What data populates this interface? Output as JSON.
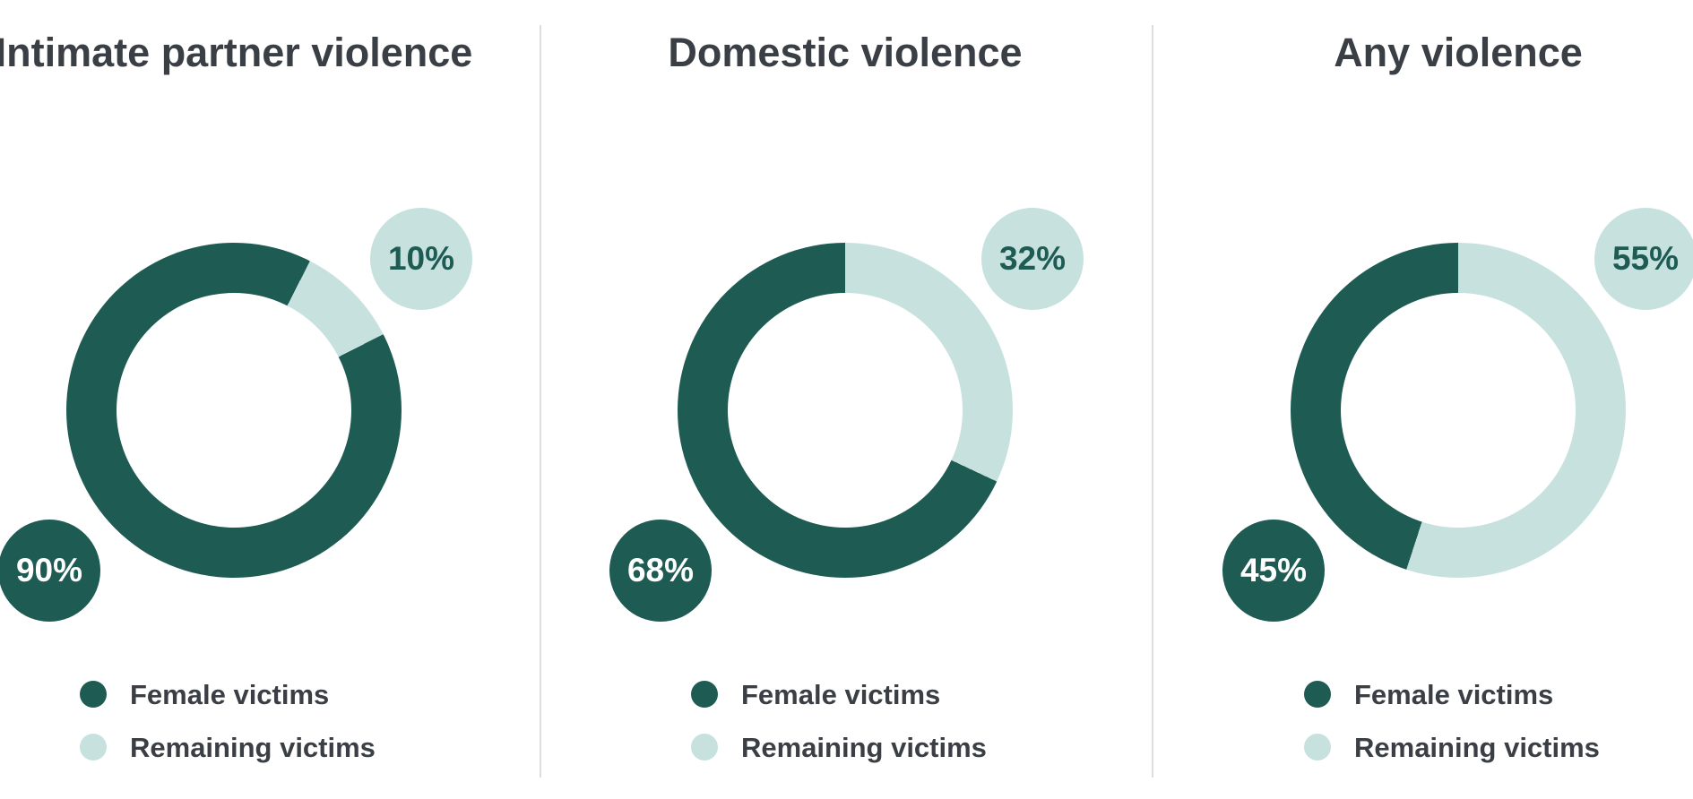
{
  "page": {
    "background": "#ffffff"
  },
  "colors": {
    "female": "#1d5b53",
    "remaining": "#c7e2de",
    "heading_text": "#3a3f45",
    "divider": "#dedede",
    "badge_text_on_dark": "#ffffff",
    "badge_text_on_light": "#1d5b53"
  },
  "legend": {
    "female_label": "Female victims",
    "remaining_label": "Remaining victims"
  },
  "chart_data": {
    "type": "pie",
    "subtype": "donut",
    "unit": "percent",
    "legend_position": "bottom-left",
    "series_labels": [
      "Female victims",
      "Remaining victims"
    ],
    "charts": [
      {
        "title": "Intimate partner violence",
        "categories": [
          "Female victims",
          "Remaining victims"
        ],
        "values": [
          90,
          10
        ],
        "female_pct": 90,
        "remaining_pct": 10,
        "female_badge": "90%",
        "remaining_badge": "10%",
        "remaining_slice_start_deg": 27
      },
      {
        "title": "Domestic violence",
        "categories": [
          "Female victims",
          "Remaining victims"
        ],
        "values": [
          68,
          32
        ],
        "female_pct": 68,
        "remaining_pct": 32,
        "female_badge": "68%",
        "remaining_badge": "32%",
        "remaining_slice_start_deg": 0
      },
      {
        "title": "Any violence",
        "categories": [
          "Female victims",
          "Remaining victims"
        ],
        "values": [
          45,
          55
        ],
        "female_pct": 45,
        "remaining_pct": 55,
        "female_badge": "45%",
        "remaining_badge": "55%",
        "remaining_slice_start_deg": 0
      }
    ]
  }
}
